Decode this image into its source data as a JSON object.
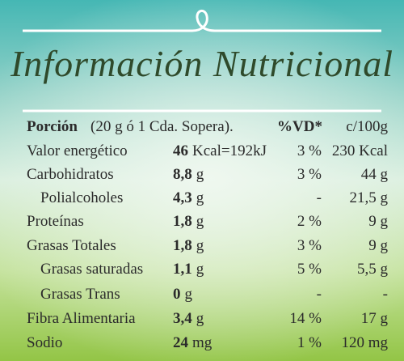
{
  "title": "Información Nutricional",
  "table": {
    "header": [
      "Porción",
      "(20 g ó 1 Cda. Sopera).",
      "%VD*",
      "c/100g"
    ],
    "rows": [
      [
        "Valor energético",
        "46",
        "Kcal=192kJ",
        "3 %",
        "230 Kcal"
      ],
      [
        "Carbohidratos",
        "8,8",
        "g",
        "3 %",
        "44 g"
      ],
      [
        "Polialcoholes",
        "4,3",
        "g",
        "-",
        "21,5 g"
      ],
      [
        "Proteínas",
        "1,8",
        "g",
        "2 %",
        "9 g"
      ],
      [
        "Grasas Totales",
        "1,8",
        "g",
        "3 %",
        "9 g"
      ],
      [
        "Grasas saturadas",
        "1,1",
        "g",
        "5 %",
        "5,5 g"
      ],
      [
        "Grasas Trans",
        "0",
        "g",
        "-",
        "-"
      ],
      [
        "Fibra Alimentaria",
        "3,4",
        "g",
        "14 %",
        "17 g"
      ],
      [
        "Sodio",
        "24",
        "mg",
        "1 %",
        "120 mg"
      ]
    ]
  }
}
